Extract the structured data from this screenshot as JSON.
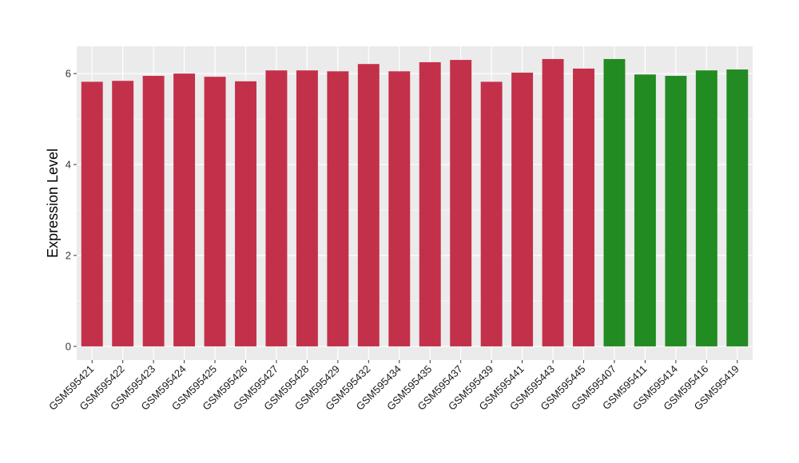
{
  "chart_data": {
    "type": "bar",
    "title": "",
    "xlabel": "",
    "ylabel": "Expression Level",
    "ylim": [
      -0.3,
      6.6
    ],
    "yticks": [
      0,
      2,
      4,
      6
    ],
    "grid": true,
    "legend": "none",
    "colors": {
      "panel_bg": "#ebebeb",
      "grid": "#ffffff",
      "group_a": "#c3304a",
      "group_b": "#228b22"
    },
    "categories": [
      "GSM595421",
      "GSM595422",
      "GSM595423",
      "GSM595424",
      "GSM595425",
      "GSM595426",
      "GSM595427",
      "GSM595428",
      "GSM595429",
      "GSM595432",
      "GSM595434",
      "GSM595435",
      "GSM595437",
      "GSM595439",
      "GSM595441",
      "GSM595443",
      "GSM595445",
      "GSM595407",
      "GSM595411",
      "GSM595414",
      "GSM595416",
      "GSM595419"
    ],
    "values": [
      5.82,
      5.84,
      5.95,
      6.0,
      5.93,
      5.83,
      6.07,
      6.07,
      6.05,
      6.21,
      6.05,
      6.25,
      6.3,
      5.82,
      6.02,
      6.32,
      6.11,
      6.32,
      5.98,
      5.95,
      6.07,
      6.09
    ],
    "groups": [
      "a",
      "a",
      "a",
      "a",
      "a",
      "a",
      "a",
      "a",
      "a",
      "a",
      "a",
      "a",
      "a",
      "a",
      "a",
      "a",
      "a",
      "b",
      "b",
      "b",
      "b",
      "b"
    ]
  }
}
